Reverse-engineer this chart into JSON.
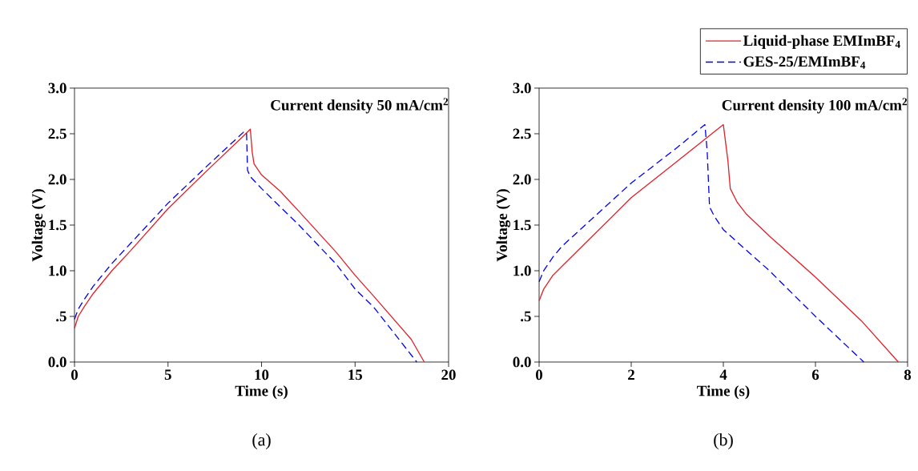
{
  "chart_data": [
    {
      "type": "line",
      "xlabel": "Time (s)",
      "ylabel": "Voltage (V)",
      "xlim": [
        0,
        20
      ],
      "ylim": [
        0,
        3
      ],
      "xticks": [
        0,
        5,
        10,
        15,
        20
      ],
      "yticks": [
        {
          "value": 0,
          "label": "0.0"
        },
        {
          "value": 0.5,
          "label": ".5"
        },
        {
          "value": 1,
          "label": "1.0"
        },
        {
          "value": 1.5,
          "label": "1.5"
        },
        {
          "value": 2,
          "label": "2.0"
        },
        {
          "value": 2.5,
          "label": "2.5"
        },
        {
          "value": 3,
          "label": "3.0"
        }
      ],
      "annotations": [
        "Current density 50 mA/cm$^{2}$",
        "(a)"
      ],
      "series": [
        {
          "color": "#e0202a",
          "line_style": "solid",
          "x": [
            0,
            0.2,
            0.5,
            1,
            2,
            3,
            5,
            7,
            9,
            9.4,
            9.5,
            9.6,
            10,
            11,
            12,
            14,
            15,
            16,
            18,
            18.7
          ],
          "values": [
            0.37,
            0.5,
            0.6,
            0.75,
            1.0,
            1.22,
            1.68,
            2.08,
            2.47,
            2.55,
            2.3,
            2.17,
            2.05,
            1.87,
            1.65,
            1.2,
            0.95,
            0.72,
            0.25,
            0
          ]
        },
        {
          "color": "#0000ee",
          "line_style": "dashed",
          "x": [
            0,
            0.2,
            0.5,
            1,
            2,
            3,
            5,
            7,
            9.1,
            9.2,
            9.25,
            9.4,
            10,
            12,
            14,
            15,
            16,
            18.3
          ],
          "values": [
            0.47,
            0.58,
            0.68,
            0.83,
            1.08,
            1.3,
            1.74,
            2.13,
            2.53,
            2.5,
            2.1,
            2.03,
            1.9,
            1.5,
            1.07,
            0.8,
            0.6,
            0
          ]
        }
      ]
    },
    {
      "type": "line",
      "xlabel": "Time (s)",
      "ylabel": "Voltage (V)",
      "xlim": [
        0,
        8
      ],
      "ylim": [
        0,
        3
      ],
      "legend": "top right",
      "xticks": [
        0,
        2,
        4,
        6,
        8
      ],
      "yticks": [
        {
          "value": 0,
          "label": "0.0"
        },
        {
          "value": 0.5,
          "label": ".5"
        },
        {
          "value": 1,
          "label": "1.0"
        },
        {
          "value": 1.5,
          "label": "1.5"
        },
        {
          "value": 2,
          "label": "2.0"
        },
        {
          "value": 2.5,
          "label": "2.5"
        },
        {
          "value": 3,
          "label": "3.0"
        }
      ],
      "annotations": [
        "Current density 100 mA/cm$^{2}$",
        "(b)"
      ],
      "series": [
        {
          "name": "Liquid-phase EMImBF$_{4}$",
          "color": "#e0202a",
          "line_style": "solid",
          "x": [
            0,
            0.1,
            0.3,
            0.5,
            1,
            2,
            3,
            4,
            4.1,
            4.15,
            4.3,
            4.5,
            5,
            6,
            7,
            7.8
          ],
          "values": [
            0.67,
            0.8,
            0.95,
            1.05,
            1.3,
            1.8,
            2.2,
            2.6,
            2.2,
            1.9,
            1.75,
            1.62,
            1.38,
            0.93,
            0.45,
            0
          ]
        },
        {
          "name": "GES-25/EMImBF$_{4}$",
          "color": "#0000ee",
          "line_style": "dashed",
          "x": [
            0,
            0.1,
            0.3,
            0.5,
            1,
            2,
            3,
            3.6,
            3.65,
            3.7,
            3.8,
            4,
            5,
            6,
            7.05
          ],
          "values": [
            0.88,
            1.0,
            1.15,
            1.27,
            1.5,
            1.96,
            2.35,
            2.6,
            2.3,
            1.7,
            1.6,
            1.45,
            1.0,
            0.5,
            0
          ]
        }
      ]
    }
  ]
}
